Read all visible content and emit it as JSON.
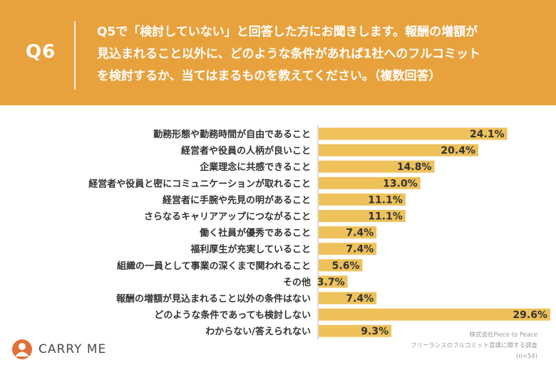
{
  "header": {
    "question_number": "Q6",
    "question_lines": [
      "Q5で「検討していない」と回答した方にお聞きします。報酬の増額が",
      "見込まれること以外に、どのような条件があれば1社へのフルコミット",
      "を検討するか、当てはまるものを教えてください。（複数回答）"
    ]
  },
  "chart_data": {
    "type": "bar",
    "orientation": "horizontal",
    "categories": [
      "勤務形態や勤務時間が自由であること",
      "経営者や役員の人柄が良いこと",
      "企業理念に共感できること",
      "経営者や役員と密にコミュニケーションが取れること",
      "経営者に手腕や先見の明があること",
      "さらなるキャリアアップにつながること",
      "働く社員が優秀であること",
      "福利厚生が充実していること",
      "組織の一員として事業の深くまで関われること",
      "その他",
      "報酬の増額が見込まれること以外の条件はない",
      "どのような条件であっても検討しない",
      "わからない/答えられない"
    ],
    "values": [
      24.1,
      20.4,
      14.8,
      13.0,
      11.1,
      11.1,
      7.4,
      7.4,
      5.6,
      3.7,
      7.4,
      29.6,
      9.3
    ],
    "value_labels": [
      "24.1%",
      "20.4%",
      "14.8%",
      "13.0%",
      "11.1%",
      "11.1%",
      "7.4%",
      "7.4%",
      "5.6%",
      "3.7%",
      "7.4%",
      "29.6%",
      "9.3%"
    ],
    "xlim": [
      0,
      30
    ],
    "bar_color": "#EEC15A"
  },
  "footer": {
    "logo_text": "CARRY ME",
    "credit_lines": [
      "株式会社Piece to Peace",
      "フリーランスのフルコミット意識に関する調査",
      "(n=54)"
    ]
  },
  "colors": {
    "background": "#E8A23D",
    "panel": "#FFFFFF",
    "logo_mark": "#E0703A"
  }
}
